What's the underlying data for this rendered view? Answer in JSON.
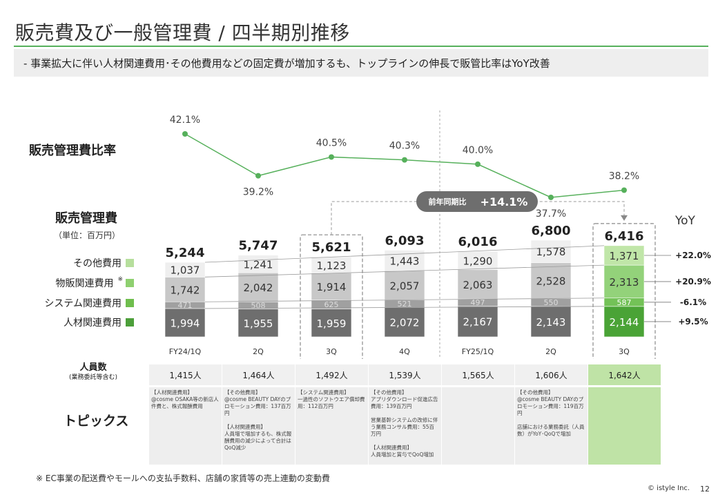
{
  "page": {
    "title": "販売費及び一般管理費 / 四半期別推移",
    "subtitle": "- 事業拡大に伴い人材関連費用･その他費用などの固定費が増加するも、トップラインの伸長で販管比率はYoY改善",
    "ratio_label": "販売管理費比率",
    "sga_label": "販売管理費",
    "unit_label": "（単位：百万円）",
    "yoy_title": "YoY",
    "comparison_badge_prefix": "前年同期比",
    "comparison_badge_value": "+14.1%",
    "headcount_label": "人員数",
    "headcount_sublabel": "(業務委託等含む)",
    "topics_label": "トピックス",
    "footnote": "※ EC事業の配送費やモールへの支払手数料、店舗の家賃等の売上連動の変動費",
    "copyright": "© istyle Inc.",
    "page_number": "12",
    "legend_note_mark": "※"
  },
  "legend": [
    {
      "label": "その他費用",
      "color": "#b7df9d",
      "note": ""
    },
    {
      "label": "物販関連費用",
      "color": "#8fd070",
      "note": "※"
    },
    {
      "label": "システム関連費用",
      "color": "#6fbe4d",
      "note": ""
    },
    {
      "label": "人材関連費用",
      "color": "#4c9f3a",
      "note": ""
    }
  ],
  "headcount": [
    "1,415人",
    "1,464人",
    "1,492人",
    "1,539人",
    "1,565人",
    "1,606人",
    "1,642人"
  ],
  "topics": [
    "【人材関連費用】\n@cosme OSAKA等の新店人件費と、株式報酬費用",
    "【その他費用】\n@cosme BEAUTY DAYのプロモーション費用：137百万円\n\n【人材関連費用】\n人員増で増加するも、株式報酬費用の減少によって合計はQoQ減少",
    "【システム関連費用】\n一過性のソフトウエア償却費用：112百万円",
    "【その他費用】\nアプリダウンロード促進広告費用：139百万円\n\n営業基幹システムの改修に伴う業務コンサル費用：55百万円\n\n【人材関連費用】\n人員増加と賞与でQoQ増加",
    "",
    "【その他費用】\n@cosme BEAUTY DAYのプロモーション費用：119百万円\n\n店舗における業務委託（人員数）がYoY･QoQで増加",
    ""
  ],
  "chart_data": [
    {
      "type": "line",
      "title": "販売管理費比率",
      "x": [
        "FY24/1Q",
        "2Q",
        "3Q",
        "4Q",
        "FY25/1Q",
        "2Q",
        "3Q"
      ],
      "values": [
        42.1,
        39.2,
        40.5,
        40.3,
        40.0,
        37.7,
        38.2
      ],
      "data_labels": [
        "42.1%",
        "39.2%",
        "40.5%",
        "40.3%",
        "40.0%",
        "37.7%",
        "38.2%"
      ],
      "color": "#56b05b",
      "ylim": [
        36,
        43
      ]
    },
    {
      "type": "bar",
      "stacked": true,
      "title": "販売管理費",
      "unit": "百万円",
      "categories": [
        "FY24/1Q",
        "2Q",
        "3Q",
        "4Q",
        "FY25/1Q",
        "2Q",
        "3Q"
      ],
      "series": [
        {
          "name": "人材関連費用",
          "values": [
            1994,
            1955,
            1959,
            2072,
            2167,
            2143,
            2144
          ],
          "labels": [
            "1,994",
            "1,955",
            "1,959",
            "2,072",
            "2,167",
            "2,143",
            "2,144"
          ]
        },
        {
          "name": "システム関連費用",
          "values": [
            471,
            508,
            625,
            521,
            497,
            550,
            587
          ],
          "labels": [
            "471",
            "508",
            "625",
            "521",
            "497",
            "550",
            "587"
          ]
        },
        {
          "name": "物販関連費用",
          "values": [
            1742,
            2042,
            1914,
            2057,
            2063,
            2528,
            2313
          ],
          "labels": [
            "1,742",
            "2,042",
            "1,914",
            "2,057",
            "2,063",
            "2,528",
            "2,313"
          ]
        },
        {
          "name": "その他費用",
          "values": [
            1037,
            1241,
            1123,
            1443,
            1290,
            1578,
            1371
          ],
          "labels": [
            "1,037",
            "1,241",
            "1,123",
            "1,443",
            "1,290",
            "1,578",
            "1,371"
          ]
        }
      ],
      "totals": [
        5244,
        5747,
        5621,
        6093,
        6016,
        6800,
        6416
      ],
      "total_labels": [
        "5,244",
        "5,747",
        "5,621",
        "6,093",
        "6,016",
        "6,800",
        "6,416"
      ],
      "gray_colors": [
        "#6e6e6e",
        "#a0a0a0",
        "#c8c8c8",
        "#efefef"
      ],
      "highlight_colors": [
        "#4aa336",
        "#73c257",
        "#93d27a",
        "#c0e6a8"
      ],
      "highlight_index": 6,
      "dashed_box_index": 2,
      "yoy": [
        "+9.5%",
        "-6.1%",
        "+20.9%",
        "+22.0%"
      ]
    }
  ]
}
